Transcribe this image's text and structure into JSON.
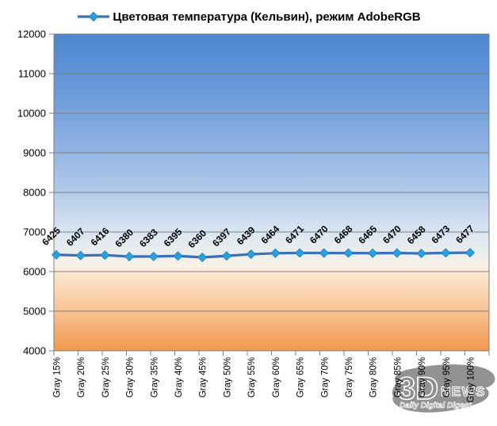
{
  "chart_data": {
    "type": "line",
    "title": "Цветовая температура (Кельвин), режим AdobeRGB",
    "categories": [
      "Gray 15%",
      "Gray 20%",
      "Gray 25%",
      "Gray 30%",
      "Gray 35%",
      "Gray 40%",
      "Gray 45%",
      "Gray 50%",
      "Gray 55%",
      "Gray 60%",
      "Gray 65%",
      "Gray 70%",
      "Gray 75%",
      "Gray 80%",
      "Gray 85%",
      "Gray 90%",
      "Gray 95%",
      "Gray 100%"
    ],
    "series": [
      {
        "name": "Цветовая температура (Кельвин), режим AdobeRGB",
        "values": [
          6425,
          6407,
          6416,
          6380,
          6383,
          6395,
          6360,
          6397,
          6439,
          6464,
          6471,
          6470,
          6468,
          6465,
          6470,
          6458,
          6473,
          6477
        ]
      }
    ],
    "xlabel": "",
    "ylabel": "",
    "ylim": [
      4000,
      12000
    ],
    "y_ticks": [
      4000,
      5000,
      6000,
      7000,
      8000,
      9000,
      10000,
      11000,
      12000
    ],
    "grid": "horizontal",
    "legend_position": "top",
    "line_color": "#3f6fb5",
    "marker_color": "#2aa0dc",
    "marker_edge_color": "#1c7fc0",
    "marker_shape": "diamond",
    "axis_color": "#7f7f7f",
    "label_color": "#000000",
    "background_gradient": [
      {
        "offset": 0,
        "color": "#4b86cf"
      },
      {
        "offset": 0.125,
        "color": "#6093d6"
      },
      {
        "offset": 0.25,
        "color": "#78a3dc"
      },
      {
        "offset": 0.375,
        "color": "#94b5e3"
      },
      {
        "offset": 0.5,
        "color": "#b4cbea"
      },
      {
        "offset": 0.625,
        "color": "#d9e5f3"
      },
      {
        "offset": 0.7,
        "color": "#efefec"
      },
      {
        "offset": 0.735,
        "color": "#f9f1e6"
      },
      {
        "offset": 0.75,
        "color": "#fbe7d2"
      },
      {
        "offset": 0.875,
        "color": "#f8c291"
      },
      {
        "offset": 1,
        "color": "#f2974d"
      }
    ]
  },
  "watermark": {
    "brand": "3D",
    "brand_suffix": "NEWS",
    "tagline": "Daily Digital Digest",
    "color": "#8c8c8c"
  }
}
